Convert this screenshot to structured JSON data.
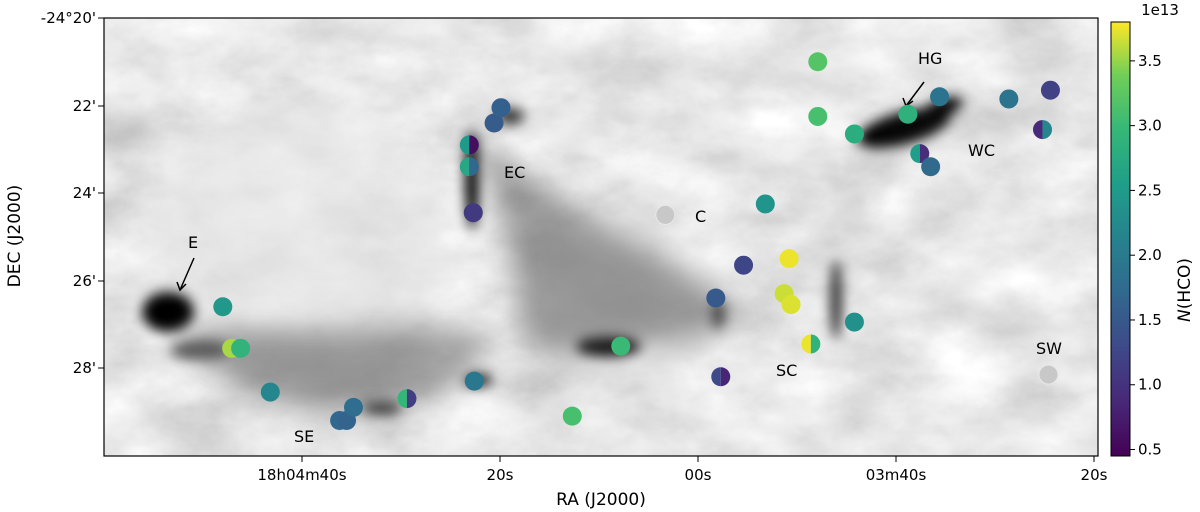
{
  "chart_data": {
    "type": "scatter",
    "title": "",
    "xlabel": "RA (J2000)",
    "ylabel": "DEC (J2000)",
    "x_tick_labels": [
      "18h04m40s",
      "20s",
      "00s",
      "03m40s",
      "20s"
    ],
    "y_tick_labels": [
      "-24°20'",
      "22'",
      "24'",
      "26'",
      "28'"
    ],
    "colorbar": {
      "label": "N(HCO)",
      "exponent_label": "1e13",
      "colormap": "viridis",
      "range": [
        0.45,
        3.8
      ],
      "tick_labels": [
        "0.5",
        "1.0",
        "1.5",
        "2.0",
        "2.5",
        "3.0",
        "3.5"
      ]
    },
    "region_labels": [
      "HG",
      "WC",
      "EC",
      "C",
      "E",
      "SC",
      "SW",
      "SE"
    ],
    "background": "grayscale column-density map",
    "points": [
      {
        "ra": "18h04m48.0s",
        "dec": "-24°26'36\"",
        "value": 2.45
      },
      {
        "ra": "18h04m47.1s",
        "dec": "-24°27'33\"",
        "value": 3.55
      },
      {
        "ra": "18h04m46.2s",
        "dec": "-24°27'33\"",
        "value": 2.9
      },
      {
        "ra": "18h04m43.2s",
        "dec": "-24°28'33\"",
        "value": 2.2
      },
      {
        "ra": "18h04m36.2s",
        "dec": "-24°29'12\"",
        "value": 1.7
      },
      {
        "ra": "18h04m35.5s",
        "dec": "-24°29'12\"",
        "value": 1.65
      },
      {
        "ra": "18h04m34.8s",
        "dec": "-24°28'54\"",
        "value": 1.8
      },
      {
        "ra": "18h04m29.4s",
        "dec": "-24°28'42\"",
        "value": 2.95,
        "value2": 1.15
      },
      {
        "ra": "18h04m22.6s",
        "dec": "-24°28'18\"",
        "value": 1.95
      },
      {
        "ra": "18h04m23.1s",
        "dec": "-24°22'54\"",
        "value": 2.5,
        "value2": 0.6
      },
      {
        "ra": "18h04m23.1s",
        "dec": "-24°23'24\"",
        "value": 2.7,
        "value2": 1.7
      },
      {
        "ra": "18h04m22.7s",
        "dec": "-24°24'27\"",
        "value": 1.1
      },
      {
        "ra": "18h04m20.6s",
        "dec": "-24°22'24\"",
        "value": 1.55
      },
      {
        "ra": "18h04m19.9s",
        "dec": "-24°22'03\"",
        "value": 1.6
      },
      {
        "ra": "18h04m12.7s",
        "dec": "-24°29'06\"",
        "value": 3.1
      },
      {
        "ra": "18h04m07.8s",
        "dec": "-24°27'30\"",
        "value": 3.0
      },
      {
        "ra": "18h04m03.3s",
        "dec": "-24°24'30\"",
        "value": null
      },
      {
        "ra": "18h03m58.2s",
        "dec": "-24°26'24\"",
        "value": 1.5
      },
      {
        "ra": "18h03m57.7s",
        "dec": "-24°28'12\"",
        "value": 1.3,
        "value2": 0.85
      },
      {
        "ra": "18h03m55.4s",
        "dec": "-24°25'39\"",
        "value": 1.25
      },
      {
        "ra": "18h03m53.2s",
        "dec": "-24°24'15\"",
        "value": 2.4
      },
      {
        "ra": "18h03m51.3s",
        "dec": "-24°26'18\"",
        "value": 3.65
      },
      {
        "ra": "18h03m50.8s",
        "dec": "-24°25'30\"",
        "value": 3.75
      },
      {
        "ra": "18h03m50.6s",
        "dec": "-24°26'33\"",
        "value": 3.7
      },
      {
        "ra": "18h03m48.6s",
        "dec": "-24°27'27\"",
        "value": 3.75,
        "value2": 2.9
      },
      {
        "ra": "18h03m47.9s",
        "dec": "-24°21'00\"",
        "value": 3.2
      },
      {
        "ra": "18h03m47.9s",
        "dec": "-24°22'15\"",
        "value": 3.1
      },
      {
        "ra": "18h03m44.2s",
        "dec": "-24°26'57\"",
        "value": 2.35
      },
      {
        "ra": "18h03m44.2s",
        "dec": "-24°22'39\"",
        "value": 2.8
      },
      {
        "ra": "18h03m38.8s",
        "dec": "-24°22'12\"",
        "value": 2.85
      },
      {
        "ra": "18h03m37.6s",
        "dec": "-24°23'06\"",
        "value": 2.55,
        "value2": 0.95
      },
      {
        "ra": "18h03m36.5s",
        "dec": "-24°23'24\"",
        "value": 1.75
      },
      {
        "ra": "18h03m35.6s",
        "dec": "-24°21'48\"",
        "value": 1.9
      },
      {
        "ra": "18h03m28.6s",
        "dec": "-24°21'51\"",
        "value": 1.9
      },
      {
        "ra": "18h03m25.2s",
        "dec": "-24°22'33\"",
        "value": 0.9,
        "value2": 2.2
      },
      {
        "ra": "18h03m24.4s",
        "dec": "-24°21'39\"",
        "value": 1.2
      },
      {
        "ra": "18h03m24.6s",
        "dec": "-24°28'09\"",
        "value": null
      }
    ]
  }
}
